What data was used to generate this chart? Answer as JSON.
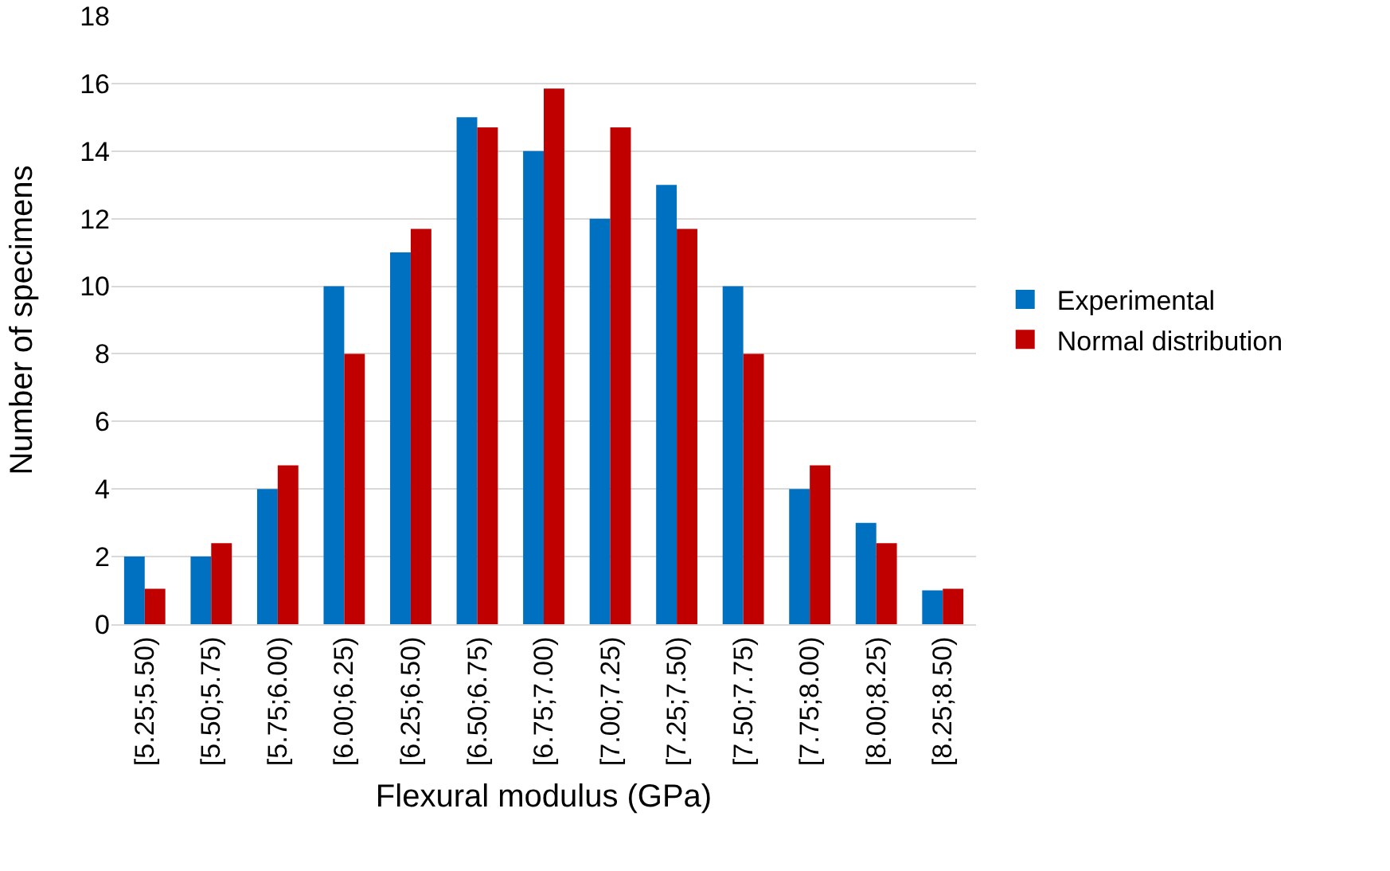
{
  "chart_data": {
    "type": "bar",
    "xlabel": "Flexural modulus (GPa)",
    "ylabel": "Number of specimens",
    "categories": [
      "[5.25;5.50)",
      "[5.50;5.75)",
      "[5.75;6.00)",
      "[6.00;6.25)",
      "[6.25;6.50)",
      "[6.50;6.75)",
      "[6.75;7.00)",
      "[7.00;7.25)",
      "[7.25;7.50)",
      "[7.50;7.75)",
      "[7.75;8.00)",
      "[8.00;8.25)",
      "[8.25;8.50)"
    ],
    "series": [
      {
        "name": "Experimental",
        "color": "#0070c0",
        "values": [
          2,
          2,
          4,
          10,
          11,
          15,
          14,
          12,
          13,
          10,
          4,
          3,
          1
        ]
      },
      {
        "name": "Normal distribution",
        "color": "#c00000",
        "values": [
          1.05,
          2.4,
          4.7,
          8,
          11.7,
          14.7,
          15.85,
          14.7,
          11.7,
          8,
          4.7,
          2.4,
          1.05
        ]
      }
    ],
    "ylim": [
      0,
      18
    ],
    "yticks": [
      0,
      2,
      4,
      6,
      8,
      10,
      12,
      14,
      16,
      18
    ],
    "grid": "y",
    "legend": "right"
  }
}
